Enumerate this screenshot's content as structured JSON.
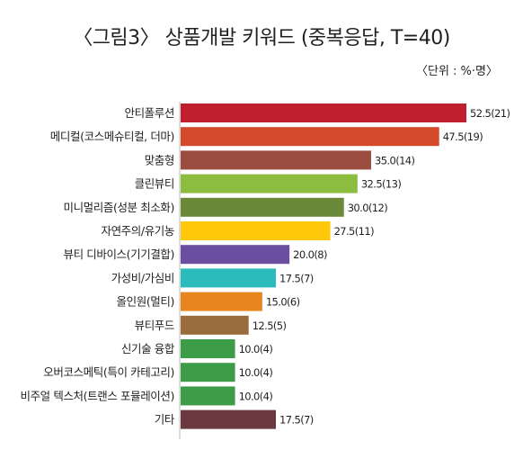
{
  "title": "〈그림3〉 상품개발 키워드 (중복응답, T=40)",
  "unit_note": "〈단위 : %·명〉",
  "chart_data": {
    "type": "bar",
    "orientation": "horizontal",
    "title": "〈그림3〉 상품개발 키워드 (중복응답, T=40)",
    "unit": "〈단위 : %·명〉",
    "categories": [
      "안티폴루션",
      "메디컬(코스메슈티컬, 더마)",
      "맞춤형",
      "클린뷰티",
      "미니멀리즘(성분 최소화)",
      "자연주의/유기농",
      "뷰티 디바이스(기기결합)",
      "가성비/가심비",
      "올인원(멀티)",
      "뷰티푸드",
      "신기술 융합",
      "오버코스메틱(특이 카테고리)",
      "비주얼 텍스처(트랜스 포뮬레이션)",
      "기타"
    ],
    "values": [
      52.5,
      47.5,
      35.0,
      32.5,
      30.0,
      27.5,
      20.0,
      17.5,
      15.0,
      12.5,
      10.0,
      10.0,
      10.0,
      17.5
    ],
    "counts": [
      21,
      19,
      14,
      13,
      12,
      11,
      8,
      7,
      6,
      5,
      4,
      4,
      4,
      7
    ],
    "value_labels": [
      "52.5(21)",
      "47.5(19)",
      "35.0(14)",
      "32.5(13)",
      "30.0(12)",
      "27.5(11)",
      "20.0(8)",
      "17.5(7)",
      "15.0(6)",
      "12.5(5)",
      "10.0(4)",
      "10.0(4)",
      "10.0(4)",
      "17.5(7)"
    ],
    "colors": [
      "#c0202e",
      "#d44b2c",
      "#9b4d3f",
      "#8cbd3f",
      "#6a8a3a",
      "#ffc80a",
      "#6a4fa0",
      "#2bbbbd",
      "#e9851f",
      "#9a6b3b",
      "#3d9c48",
      "#3d9c48",
      "#3d9c48",
      "#6a3a40"
    ],
    "xlim": [
      0,
      52.5
    ],
    "grid": false,
    "legend": "none"
  }
}
